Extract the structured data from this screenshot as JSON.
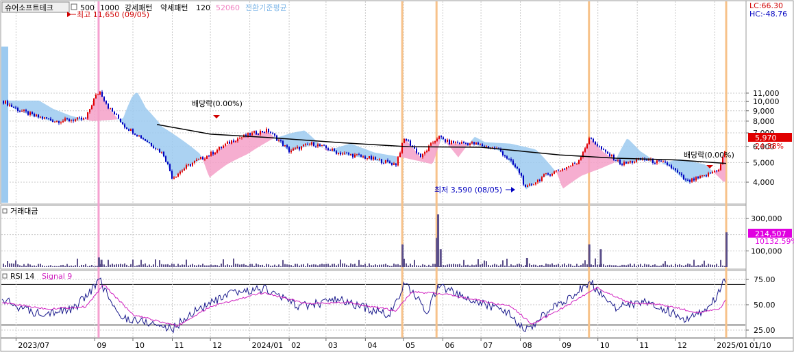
{
  "header": {
    "stock": "슈어소프트테크",
    "items": [
      "500",
      "1000",
      "강세패턴",
      "약세패턴",
      "120",
      "52060",
      "전환기준평균"
    ],
    "item_colors": [
      "#000000",
      "#000000",
      "#000000",
      "#000000",
      "#000000",
      "#f080c0",
      "#80b8e8"
    ]
  },
  "badges": {
    "lc": "LC:66.30",
    "hc": "HC:-48.76"
  },
  "colors": {
    "up": "#e00000",
    "down": "#0000c0",
    "ma": "#000000",
    "cloud_pos": "#f4a0c8",
    "cloud_neg": "#9ccaf0",
    "vline_orange": "#f7c28a",
    "vline_pink": "#f5a0d0",
    "volume": "#5b4f8a",
    "rsi": "#1a1a8c",
    "signal": "#d020c0",
    "price_badge": "#e00000",
    "vol_badge": "#e000e0"
  },
  "annotations": {
    "high": "최고 11,650 (09/05)",
    "low": "최저 3,590 (08/05)",
    "div1": "배당락(0.00%)",
    "div2": "배당락(0.00%)"
  },
  "chart_data": [
    {
      "type": "candlestick",
      "title": "",
      "y_ticks": [
        "11,000",
        "10,000",
        "9,000",
        "8,000",
        "7,000",
        "6,000",
        "5,000",
        "4,000"
      ],
      "ylim": [
        3300,
        12000
      ],
      "last_price": "5,970",
      "last_change": "24.38%",
      "close_series": [
        {
          "x": "2023-06-20",
          "y": 10100
        },
        {
          "x": "2023-07-01",
          "y": 9200
        },
        {
          "x": "2023-07-15",
          "y": 8500
        },
        {
          "x": "2023-08-01",
          "y": 8000
        },
        {
          "x": "2023-08-25",
          "y": 8200
        },
        {
          "x": "2023-09-01",
          "y": 10500
        },
        {
          "x": "2023-09-05",
          "y": 11200
        },
        {
          "x": "2023-09-12",
          "y": 9300
        },
        {
          "x": "2023-09-25",
          "y": 7500
        },
        {
          "x": "2023-10-10",
          "y": 6500
        },
        {
          "x": "2023-10-25",
          "y": 5500
        },
        {
          "x": "2023-11-01",
          "y": 4200
        },
        {
          "x": "2023-11-15",
          "y": 4900
        },
        {
          "x": "2023-12-01",
          "y": 5500
        },
        {
          "x": "2023-12-20",
          "y": 6500
        },
        {
          "x": "2024-01-05",
          "y": 7000
        },
        {
          "x": "2024-01-15",
          "y": 7200
        },
        {
          "x": "2024-02-01",
          "y": 5700
        },
        {
          "x": "2024-02-20",
          "y": 6200
        },
        {
          "x": "2024-03-10",
          "y": 5600
        },
        {
          "x": "2024-04-01",
          "y": 5300
        },
        {
          "x": "2024-04-25",
          "y": 4900
        },
        {
          "x": "2024-05-02",
          "y": 6600
        },
        {
          "x": "2024-05-15",
          "y": 5300
        },
        {
          "x": "2024-05-28",
          "y": 6700
        },
        {
          "x": "2024-06-05",
          "y": 6300
        },
        {
          "x": "2024-06-25",
          "y": 6200
        },
        {
          "x": "2024-07-15",
          "y": 5800
        },
        {
          "x": "2024-08-01",
          "y": 4400
        },
        {
          "x": "2024-08-05",
          "y": 3700
        },
        {
          "x": "2024-08-20",
          "y": 4300
        },
        {
          "x": "2024-09-05",
          "y": 4700
        },
        {
          "x": "2024-09-15",
          "y": 5000
        },
        {
          "x": "2024-09-25",
          "y": 6600
        },
        {
          "x": "2024-10-05",
          "y": 5700
        },
        {
          "x": "2024-10-20",
          "y": 4900
        },
        {
          "x": "2024-11-05",
          "y": 5200
        },
        {
          "x": "2024-11-25",
          "y": 4900
        },
        {
          "x": "2024-12-10",
          "y": 4000
        },
        {
          "x": "2024-12-25",
          "y": 4300
        },
        {
          "x": "2025-01-05",
          "y": 4700
        },
        {
          "x": "2025-01-10",
          "y": 5970
        }
      ],
      "ma_series": [
        {
          "x": "2023-10-20",
          "y": 7700
        },
        {
          "x": "2023-12-01",
          "y": 6900
        },
        {
          "x": "2024-01-15",
          "y": 6650
        },
        {
          "x": "2024-03-15",
          "y": 6250
        },
        {
          "x": "2024-05-05",
          "y": 5980
        },
        {
          "x": "2024-07-01",
          "y": 5950
        },
        {
          "x": "2024-09-01",
          "y": 5450
        },
        {
          "x": "2024-10-15",
          "y": 5250
        },
        {
          "x": "2024-12-01",
          "y": 5150
        },
        {
          "x": "2025-01-10",
          "y": 4950
        }
      ]
    },
    {
      "type": "bar",
      "title": "거래대금",
      "y_ticks": [
        "300,000",
        "200,000",
        "100,000"
      ],
      "ylim": [
        0,
        330000
      ],
      "last_badge": "214,507",
      "sub_badge": "10132.59%",
      "spikes": [
        {
          "x": "2023-09-04",
          "y": 60000
        },
        {
          "x": "2023-09-06",
          "y": 45000
        },
        {
          "x": "2024-04-30",
          "y": 140000
        },
        {
          "x": "2024-05-27",
          "y": 180000
        },
        {
          "x": "2024-05-28",
          "y": 325000
        },
        {
          "x": "2024-05-30",
          "y": 110000
        },
        {
          "x": "2024-08-06",
          "y": 55000
        },
        {
          "x": "2024-09-24",
          "y": 140000
        },
        {
          "x": "2024-10-03",
          "y": 110000
        },
        {
          "x": "2025-01-10",
          "y": 214507
        }
      ]
    },
    {
      "type": "line",
      "title": "RSI 14",
      "signal_label": "Signal 9",
      "y_ticks": [
        "75.00",
        "50.00",
        "25.00"
      ],
      "ylim": [
        20,
        80
      ],
      "levels": [
        70,
        30
      ],
      "series": [
        {
          "name": "RSI 14",
          "values": [
            {
              "x": "2023-06-20",
              "y": 55
            },
            {
              "x": "2023-07-15",
              "y": 42
            },
            {
              "x": "2023-08-15",
              "y": 45
            },
            {
              "x": "2023-09-05",
              "y": 74
            },
            {
              "x": "2023-09-20",
              "y": 38
            },
            {
              "x": "2023-10-15",
              "y": 32
            },
            {
              "x": "2023-11-01",
              "y": 26
            },
            {
              "x": "2023-11-20",
              "y": 45
            },
            {
              "x": "2023-12-20",
              "y": 62
            },
            {
              "x": "2024-01-12",
              "y": 66
            },
            {
              "x": "2024-02-10",
              "y": 48
            },
            {
              "x": "2024-03-10",
              "y": 55
            },
            {
              "x": "2024-04-20",
              "y": 40
            },
            {
              "x": "2024-05-02",
              "y": 70
            },
            {
              "x": "2024-05-20",
              "y": 44
            },
            {
              "x": "2024-05-29",
              "y": 70
            },
            {
              "x": "2024-06-20",
              "y": 55
            },
            {
              "x": "2024-07-20",
              "y": 45
            },
            {
              "x": "2024-08-05",
              "y": 24
            },
            {
              "x": "2024-08-25",
              "y": 45
            },
            {
              "x": "2024-09-25",
              "y": 72
            },
            {
              "x": "2024-10-15",
              "y": 48
            },
            {
              "x": "2024-11-10",
              "y": 52
            },
            {
              "x": "2024-12-10",
              "y": 36
            },
            {
              "x": "2024-12-28",
              "y": 48
            },
            {
              "x": "2025-01-10",
              "y": 75
            }
          ]
        },
        {
          "name": "Signal 9",
          "values": [
            {
              "x": "2023-06-20",
              "y": 52
            },
            {
              "x": "2023-07-25",
              "y": 46
            },
            {
              "x": "2023-08-25",
              "y": 48
            },
            {
              "x": "2023-09-08",
              "y": 70
            },
            {
              "x": "2023-10-01",
              "y": 40
            },
            {
              "x": "2023-11-05",
              "y": 29
            },
            {
              "x": "2023-12-01",
              "y": 48
            },
            {
              "x": "2024-01-12",
              "y": 62
            },
            {
              "x": "2024-02-15",
              "y": 51
            },
            {
              "x": "2024-03-20",
              "y": 52
            },
            {
              "x": "2024-04-25",
              "y": 44
            },
            {
              "x": "2024-05-08",
              "y": 63
            },
            {
              "x": "2024-06-05",
              "y": 60
            },
            {
              "x": "2024-07-25",
              "y": 48
            },
            {
              "x": "2024-08-10",
              "y": 31
            },
            {
              "x": "2024-09-05",
              "y": 48
            },
            {
              "x": "2024-09-30",
              "y": 67
            },
            {
              "x": "2024-10-25",
              "y": 52
            },
            {
              "x": "2024-11-20",
              "y": 50
            },
            {
              "x": "2024-12-20",
              "y": 42
            },
            {
              "x": "2025-01-05",
              "y": 46
            },
            {
              "x": "2025-01-10",
              "y": 55
            }
          ]
        }
      ]
    }
  ],
  "x_axis": {
    "labels": [
      "2023/07",
      "09",
      "10",
      "11",
      "12",
      "2024/01",
      "02",
      "03",
      "04",
      "05",
      "06",
      "07",
      "08",
      "09",
      "10",
      "11",
      "12",
      "2025/01",
      "01/10"
    ],
    "dates": [
      "2023-07-01",
      "2023-09-01",
      "2023-10-01",
      "2023-11-01",
      "2023-12-01",
      "2024-01-01",
      "2024-02-01",
      "2024-03-01",
      "2024-04-01",
      "2024-05-01",
      "2024-06-01",
      "2024-07-01",
      "2024-08-01",
      "2024-09-01",
      "2024-10-01",
      "2024-11-01",
      "2024-12-01",
      "2025-01-01",
      "2025-02-01"
    ]
  },
  "vertical_markers": [
    {
      "x": "2023-09-04",
      "color": "pink"
    },
    {
      "x": "2024-04-30",
      "color": "orange"
    },
    {
      "x": "2024-05-27",
      "color": "orange"
    },
    {
      "x": "2024-09-24",
      "color": "orange"
    },
    {
      "x": "2025-01-10",
      "color": "orange"
    }
  ]
}
